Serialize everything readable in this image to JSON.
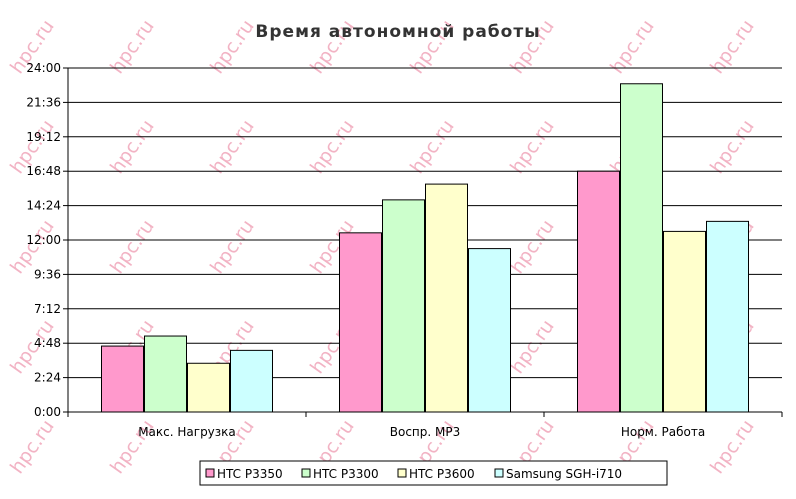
{
  "watermark": "hpc.ru",
  "chart_data": {
    "type": "bar",
    "title": "Время автономной работы",
    "xlabel": "",
    "ylabel": "",
    "categories": [
      "Макс. Нагрузка",
      "Воспр. MP3",
      "Норм. Работа"
    ],
    "y_ticks": [
      "0:00",
      "2:24",
      "4:48",
      "7:12",
      "9:36",
      "12:00",
      "14:24",
      "16:48",
      "19:12",
      "21:36",
      "24:00"
    ],
    "ylim_hours": [
      0,
      24
    ],
    "value_unit": "hours",
    "grid": true,
    "legend_position": "bottom",
    "series": [
      {
        "name": "HTC P3350",
        "color": "#ff99cc",
        "values": [
          4.6,
          12.5,
          16.8
        ]
      },
      {
        "name": "HTC P3300",
        "color": "#ccffcc",
        "values": [
          5.3,
          14.8,
          22.9
        ]
      },
      {
        "name": "HTC P3600",
        "color": "#ffffcc",
        "values": [
          3.4,
          15.9,
          12.6
        ]
      },
      {
        "name": "Samsung SGH-i710",
        "color": "#ccffff",
        "values": [
          4.3,
          11.4,
          13.3
        ]
      }
    ]
  }
}
